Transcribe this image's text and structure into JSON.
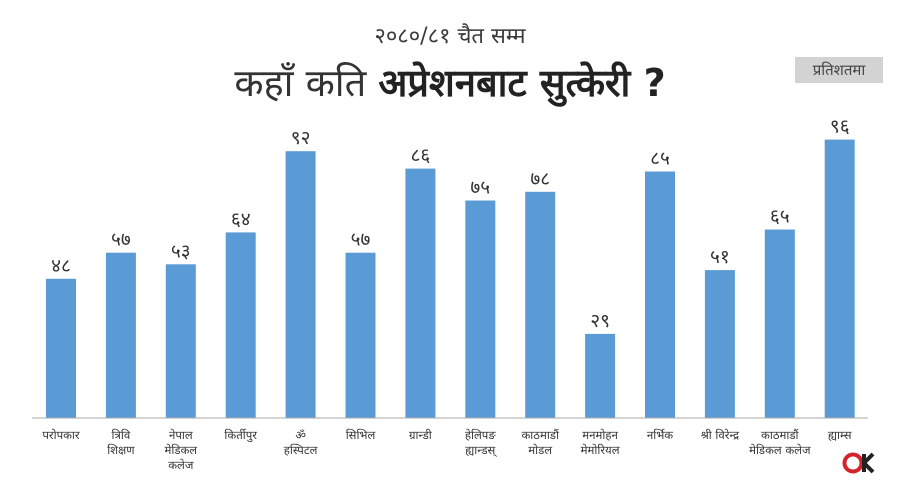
{
  "header": {
    "subtitle": "२०८०/८१ चैत सम्म",
    "title_light": "कहाँ कति ",
    "title_bold": "अप्रेशनबाट सुत्केरी ?",
    "unit_badge": "प्रतिशतमा"
  },
  "colors": {
    "bar": "#5b9bd5",
    "axis": "#aaaaaa"
  },
  "logo": {
    "text": "OK",
    "color": "#d3232a"
  },
  "chart_data": {
    "type": "bar",
    "title": "कहाँ कति अप्रेशनबाट सुत्केरी ?",
    "subtitle": "२०८०/८१ चैत सम्म",
    "unit": "प्रतिशतमा",
    "categories": [
      [
        "परोपकार"
      ],
      [
        "त्रिवि",
        "शिक्षण"
      ],
      [
        "नेपाल",
        "मेडिकल",
        "कलेज"
      ],
      [
        "किर्तीपुर"
      ],
      [
        "ॐ",
        "हस्पिटल"
      ],
      [
        "सिभिल"
      ],
      [
        "ग्रान्डी"
      ],
      [
        "हेलिपङ",
        "ह्यान्डस्"
      ],
      [
        "काठमाडौं",
        "मोडल"
      ],
      [
        "मनमोहन",
        "मेमोरियल"
      ],
      [
        "नर्भिक"
      ],
      [
        "श्री विरेन्द्र"
      ],
      [
        "काठमाडौं",
        "मेडिकल कलेज"
      ],
      [
        "ह्याम्स"
      ]
    ],
    "values": [
      48,
      57,
      53,
      64,
      92,
      57,
      86,
      75,
      78,
      29,
      85,
      51,
      65,
      96
    ],
    "value_labels": [
      "४८",
      "५७",
      "५३",
      "६४",
      "९२",
      "५७",
      "८६",
      "७५",
      "७८",
      "२९",
      "८५",
      "५१",
      "६५",
      "९६"
    ],
    "ylim": [
      0,
      100
    ],
    "grid": false,
    "legend": "none"
  }
}
